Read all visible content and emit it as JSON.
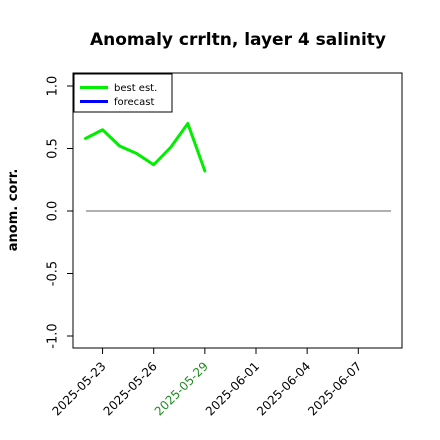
{
  "chart_data": {
    "type": "line",
    "title": "Anomaly crrltn, layer 4 salinity",
    "ylabel": "anom. corr.",
    "xlabel": "",
    "ylim": [
      -1.0,
      1.0
    ],
    "yticks": [
      "-1.0",
      "-0.5",
      "0.0",
      "0.5",
      "1.0"
    ],
    "x_categories": [
      "2025-05-22",
      "2025-05-23",
      "2025-05-24",
      "2025-05-25",
      "2025-05-26",
      "2025-05-27",
      "2025-05-28",
      "2025-05-29",
      "2025-05-30",
      "2025-05-31",
      "2025-06-01",
      "2025-06-02",
      "2025-06-03",
      "2025-06-04",
      "2025-06-05",
      "2025-06-06",
      "2025-06-07",
      "2025-06-08"
    ],
    "xticks": [
      {
        "label": "2025-05-23",
        "color": "#000000"
      },
      {
        "label": "2025-05-26",
        "color": "#000000"
      },
      {
        "label": "2025-05-29",
        "color": "#228b22"
      },
      {
        "label": "2025-06-01",
        "color": "#000000"
      },
      {
        "label": "2025-06-04",
        "color": "#000000"
      },
      {
        "label": "2025-06-07",
        "color": "#000000"
      }
    ],
    "series": [
      {
        "name": "best est.",
        "color": "#00ee00",
        "x": [
          "2025-05-22",
          "2025-05-23",
          "2025-05-24",
          "2025-05-25",
          "2025-05-26",
          "2025-05-27",
          "2025-05-28",
          "2025-05-29"
        ],
        "values": [
          0.58,
          0.65,
          0.52,
          0.46,
          0.37,
          0.51,
          0.7,
          0.32
        ]
      },
      {
        "name": "forecast",
        "color": "#0000ff",
        "x": [],
        "values": []
      }
    ],
    "reference_line": {
      "y": 0.0,
      "color": "#808080"
    },
    "legend_position": "top-left",
    "grid": false
  }
}
